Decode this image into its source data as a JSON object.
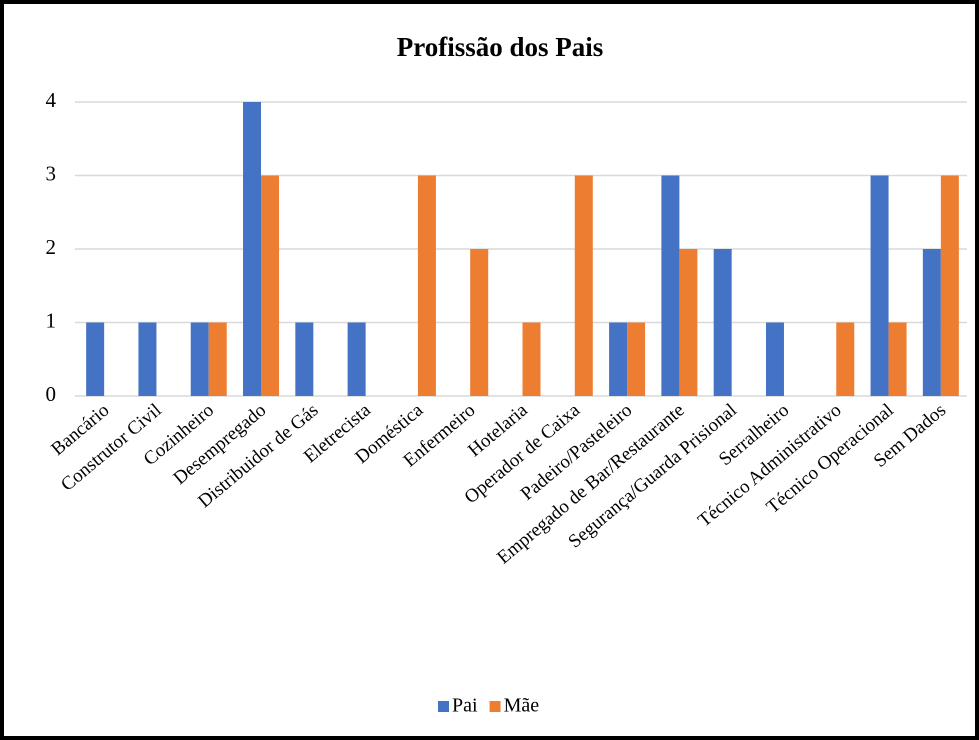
{
  "chart_data": {
    "type": "bar",
    "title": "Profissão dos Pais",
    "categories": [
      "Bancário",
      "Construtor Civil",
      "Cozinheiro",
      "Desempregado",
      "Distribuidor de Gás",
      "Eletrecista",
      "Doméstica",
      "Enfermeiro",
      "Hotelaria",
      "Operador de Caixa",
      "Padeiro/Pasteleiro",
      "Empregado de Bar/Restaurante",
      "Segurança/Guarda Prisional",
      "Serralheiro",
      "Técnico Administrativo",
      "Técnico Operacional",
      "Sem Dados"
    ],
    "series": [
      {
        "name": "Pai",
        "color": "#4472c4",
        "values": [
          1,
          1,
          1,
          4,
          1,
          1,
          0,
          0,
          0,
          0,
          1,
          3,
          2,
          1,
          0,
          3,
          2
        ]
      },
      {
        "name": "Mãe",
        "color": "#ed7d31",
        "values": [
          0,
          0,
          1,
          3,
          0,
          0,
          3,
          2,
          1,
          3,
          1,
          2,
          0,
          0,
          1,
          1,
          3
        ]
      }
    ],
    "ylim": [
      0,
      4
    ],
    "yticks": [
      0,
      1,
      2,
      3,
      4
    ],
    "grid": true,
    "legend": "bottom"
  }
}
